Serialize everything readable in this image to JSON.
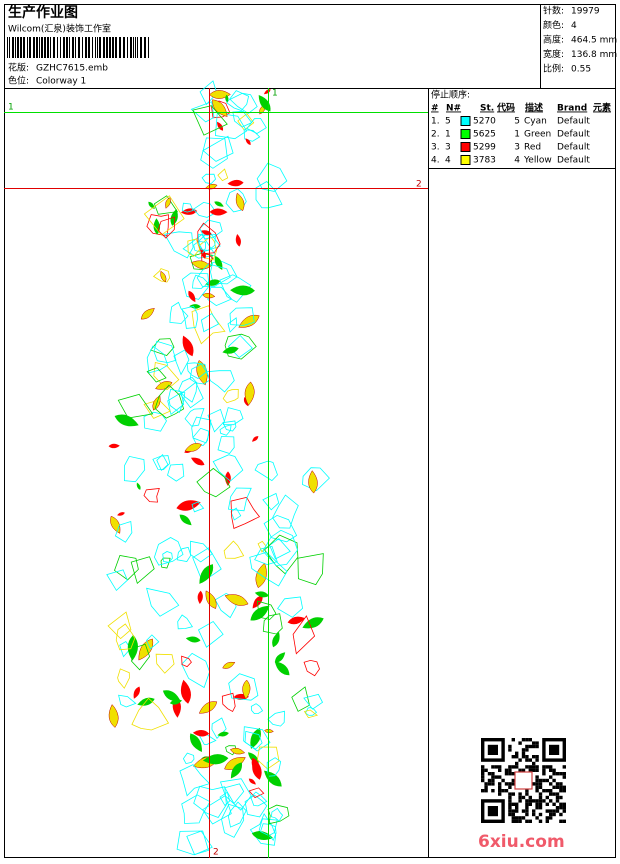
{
  "header": {
    "title": "生产作业图",
    "studio": "Wilcom(汇泉)装饰工作室",
    "design_label": "花版:",
    "design": "GZHC7615.emb",
    "colorway_label": "色位:",
    "colorway": "Colorway 1"
  },
  "stats": [
    {
      "label": "针数:",
      "value": "19979"
    },
    {
      "label": "颜色:",
      "value": "4"
    },
    {
      "label": "高度:",
      "value": "464.5 mm"
    },
    {
      "label": "宽度:",
      "value": "136.8 mm"
    },
    {
      "label": "比例:",
      "value": "0.55"
    }
  ],
  "stop_sequence": {
    "title": "停止顺序:",
    "headers": [
      "#",
      "N#",
      "St.",
      "代码",
      "描述",
      "Brand",
      "元素"
    ],
    "rows": [
      {
        "index": "1.",
        "needle": "5",
        "swatch": "#00ffff",
        "stitches": "5270",
        "code": "5",
        "description": "Cyan",
        "brand": "Default"
      },
      {
        "index": "2.",
        "needle": "1",
        "swatch": "#00ff00",
        "stitches": "5625",
        "code": "1",
        "description": "Green",
        "brand": "Default"
      },
      {
        "index": "3.",
        "needle": "3",
        "swatch": "#ff0000",
        "stitches": "5299",
        "code": "3",
        "description": "Red",
        "brand": "Default"
      },
      {
        "index": "4.",
        "needle": "4",
        "swatch": "#ffff00",
        "stitches": "3783",
        "code": "4",
        "description": "Yellow",
        "brand": "Default"
      }
    ]
  },
  "guides": {
    "top_left": "1",
    "top": "1",
    "right": "2",
    "bottom": "2"
  },
  "watermark": "6xiu.com"
}
